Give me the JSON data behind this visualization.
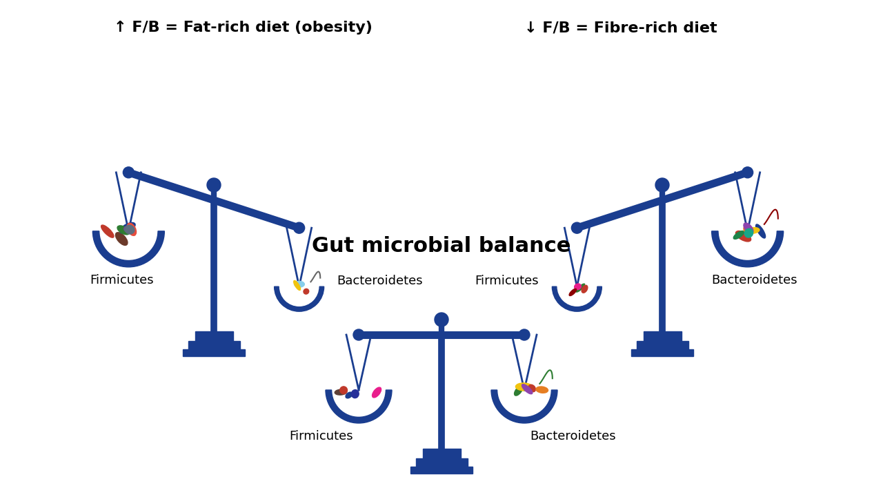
{
  "bg_color": "#ffffff",
  "scale_color": "#1a3d8f",
  "text_color": "#000000",
  "title1": "↑ F/B = Fat-rich diet (obesity)",
  "title2": "↓ F/B = Fibre-rich diet",
  "title3": "Gut microbial balance",
  "label_firmicutes": "Firmicutes",
  "label_bacteroidetes": "Bacteroidetes",
  "label_fontsize": 13,
  "title_fontsize": 16,
  "title3_fontsize": 22
}
